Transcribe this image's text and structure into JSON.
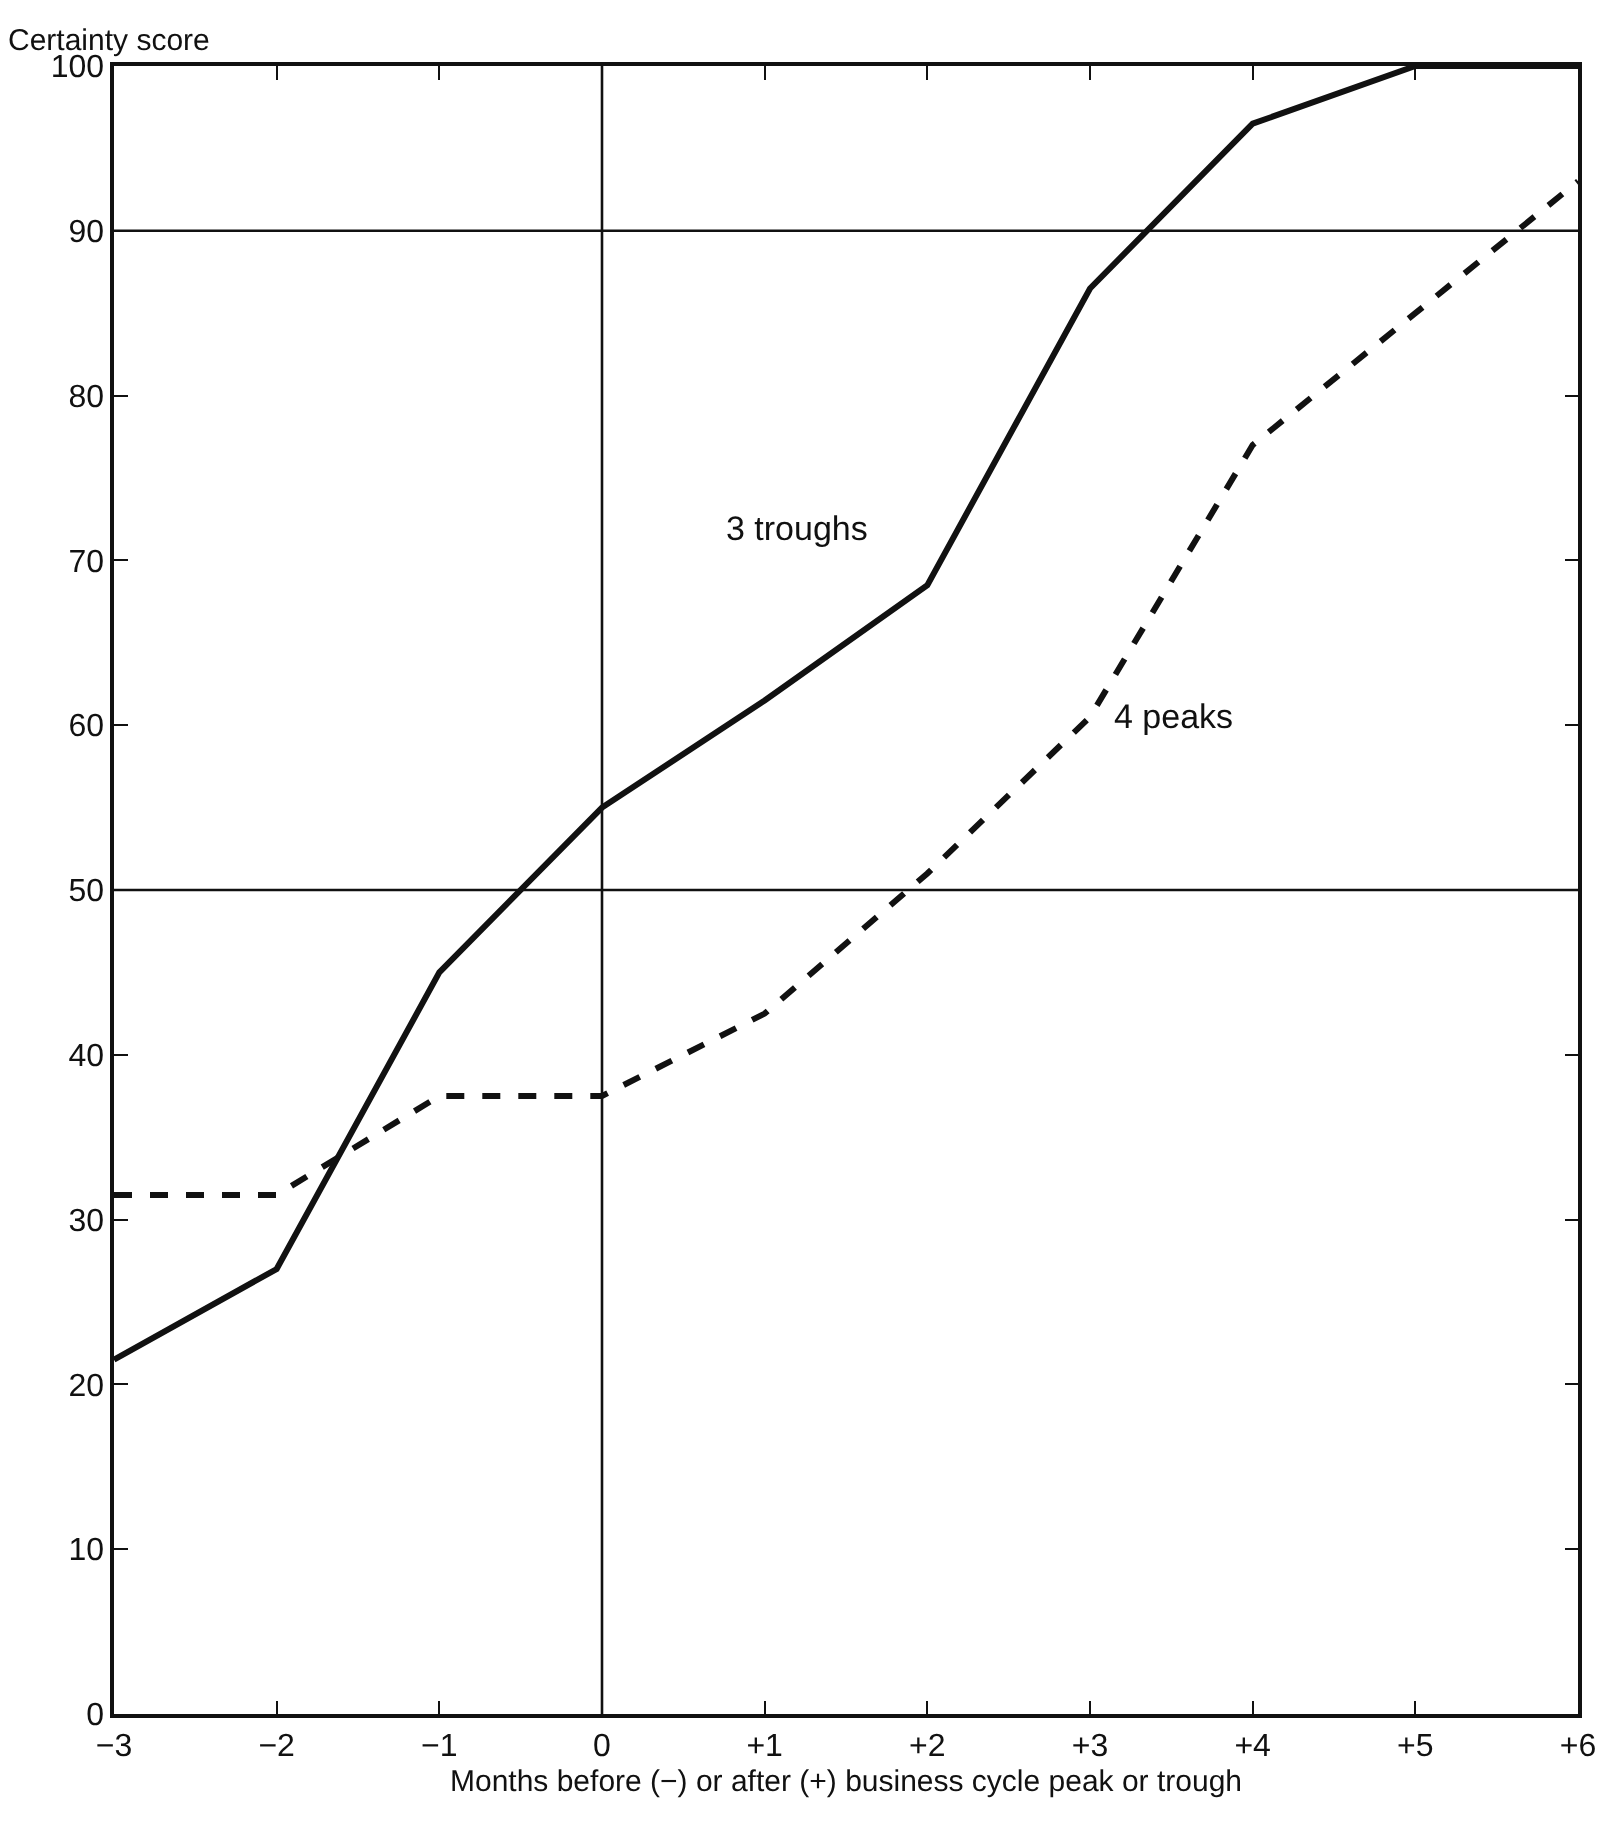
{
  "chart_data": {
    "type": "line",
    "xlabel": "Months before (−) or after (+) business cycle peak or trough",
    "ylabel": "Certainty score",
    "x": [
      -3,
      -2,
      -1,
      0,
      1,
      2,
      3,
      4,
      5,
      6
    ],
    "series": [
      {
        "name": "3 troughs",
        "color": "#111111",
        "line_style": "solid",
        "values": [
          21.5,
          27,
          45,
          55,
          61.5,
          68.5,
          86.5,
          96.5,
          100,
          100
        ]
      },
      {
        "name": "4 peaks",
        "color": "#111111",
        "line_style": "dashed",
        "values": [
          31.5,
          31.5,
          37.5,
          37.5,
          42.5,
          51,
          60.5,
          77,
          85,
          93
        ]
      }
    ],
    "ref_lines": [
      {
        "axis": "y",
        "value": 50
      },
      {
        "axis": "y",
        "value": 90
      },
      {
        "axis": "x",
        "value": 0
      }
    ],
    "xlim": [
      -3,
      6
    ],
    "ylim": [
      0,
      100
    ],
    "xticks": [
      {
        "value": -3,
        "label": "−3"
      },
      {
        "value": -2,
        "label": "−2"
      },
      {
        "value": -1,
        "label": "−1"
      },
      0,
      {
        "value": 1,
        "label": "+1"
      },
      {
        "value": 2,
        "label": "+2"
      },
      {
        "value": 3,
        "label": "+3"
      },
      {
        "value": 4,
        "label": "+4"
      },
      {
        "value": 5,
        "label": "+5"
      },
      {
        "value": 6,
        "label": "+6"
      }
    ],
    "yticks": [
      0,
      10,
      20,
      30,
      40,
      50,
      60,
      70,
      80,
      90,
      100
    ],
    "marker": "none"
  }
}
